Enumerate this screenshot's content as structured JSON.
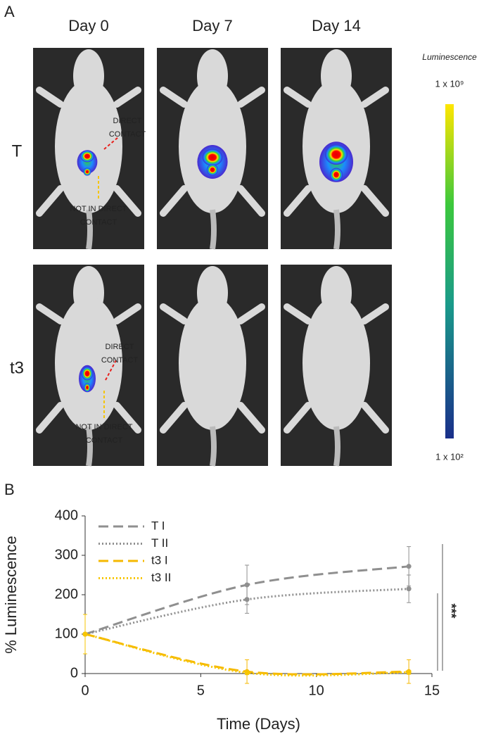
{
  "panel_a": {
    "label": "A",
    "columns": [
      "Day 0",
      "Day 7",
      "Day 14"
    ],
    "rows": [
      "T",
      "t3"
    ],
    "callouts": [
      [
        "DIRECT",
        "CONTACT"
      ],
      [
        "NOT IN DIRECT",
        "CONTACT"
      ],
      [
        "DIRECT",
        "CONTACT"
      ],
      [
        "NOT IN DIRECT",
        "CONTACT"
      ]
    ],
    "colorbar": {
      "title": "Luminescence",
      "max_label": "1 x 10⁹",
      "min_label": "1 x 10²"
    }
  },
  "chart_data": {
    "type": "line",
    "panel_label": "B",
    "x_label": "Time (Days)",
    "y_label": "% Luminescence",
    "x": [
      0,
      7,
      14
    ],
    "series": [
      {
        "name": "T I",
        "color": "#8f8f8f",
        "dash": "14 7",
        "values": [
          100,
          225,
          272
        ],
        "errors": [
          50,
          50,
          50
        ]
      },
      {
        "name": "T II",
        "color": "#8f8f8f",
        "dash": "2 3",
        "values": [
          100,
          188,
          215
        ],
        "errors": [
          50,
          35,
          35
        ]
      },
      {
        "name": "t3 I",
        "color": "#f5b800",
        "dash": "14 7",
        "values": [
          100,
          5,
          5
        ],
        "errors": [
          50,
          30,
          30
        ]
      },
      {
        "name": "t3 II",
        "color": "#f7c600",
        "dash": "2 3",
        "values": [
          100,
          2,
          3
        ],
        "errors": [
          50,
          5,
          5
        ]
      }
    ],
    "xlim": [
      0,
      15
    ],
    "xticks": [
      0,
      5,
      10,
      15
    ],
    "ylim": [
      0,
      400
    ],
    "yticks": [
      0,
      100,
      200,
      300,
      400
    ],
    "significance": "***"
  }
}
